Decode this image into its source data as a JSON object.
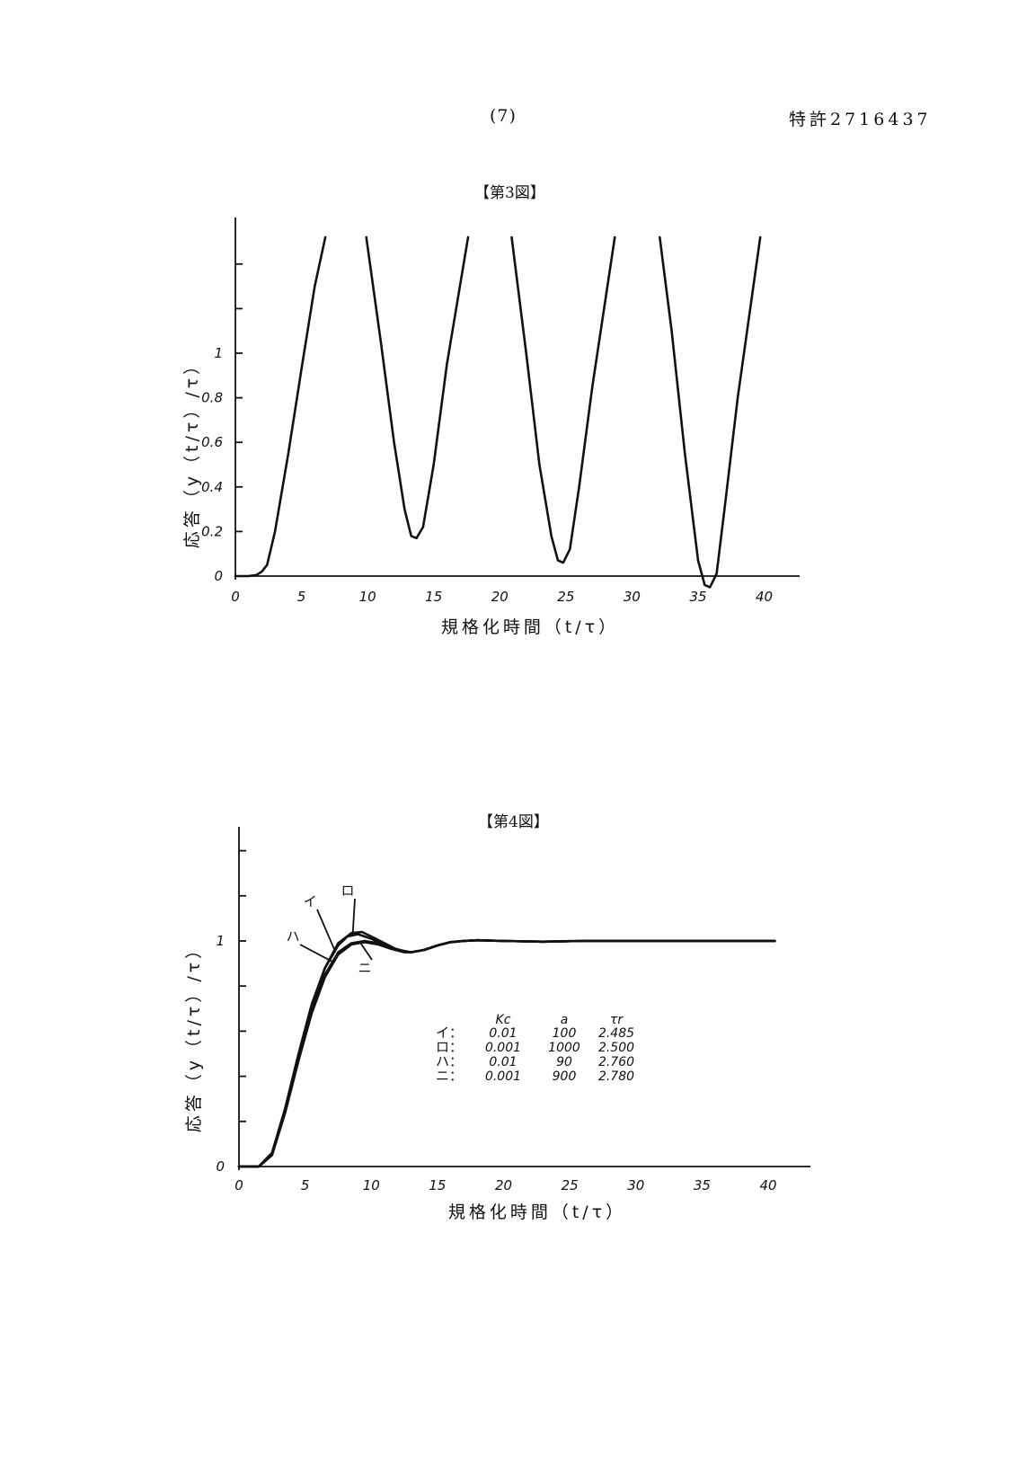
{
  "header": {
    "page_number": "(7)",
    "patent_number": "特許2716437"
  },
  "chart_data": [
    {
      "type": "line",
      "title": "【第3図】",
      "xlabel": "規格化時間（t/τ）",
      "ylabel": "応答（y（t/τ）/τ）",
      "xlim": [
        0,
        42
      ],
      "ylim": [
        -0.05,
        1.6
      ],
      "xticks": [
        0,
        5,
        10,
        15,
        20,
        25,
        30,
        35,
        40
      ],
      "xtick_labels": [
        "0",
        "5",
        "10",
        "15",
        "20",
        "25",
        "30",
        "35",
        "40"
      ],
      "yticks": [
        0,
        0.2,
        0.4,
        0.6,
        0.8,
        1
      ],
      "ytick_labels": [
        "0",
        "0.2",
        "0.4",
        "0.6",
        "0.8",
        "1"
      ],
      "series": [
        {
          "segments": [
            {
              "x": [
                0,
                1,
                1.6,
                2,
                2.4,
                3,
                4,
                5,
                6,
                6.8
              ],
              "y": [
                0,
                0,
                0.005,
                0.02,
                0.05,
                0.2,
                0.55,
                0.93,
                1.3,
                1.52
              ]
            },
            {
              "x": [
                9.9,
                11,
                12,
                12.8,
                13.3,
                13.7,
                14.2,
                15,
                16,
                17.6
              ],
              "y": [
                1.52,
                1.05,
                0.6,
                0.3,
                0.18,
                0.17,
                0.22,
                0.5,
                0.95,
                1.52
              ]
            },
            {
              "x": [
                20.9,
                22,
                23,
                23.9,
                24.4,
                24.8,
                25.3,
                26,
                27,
                28.7
              ],
              "y": [
                1.52,
                1.0,
                0.5,
                0.18,
                0.07,
                0.06,
                0.12,
                0.4,
                0.85,
                1.52
              ]
            },
            {
              "x": [
                32.1,
                33,
                34,
                35,
                35.5,
                35.9,
                36.4,
                37,
                38,
                39.7
              ],
              "y": [
                1.52,
                1.1,
                0.55,
                0.07,
                -0.04,
                -0.05,
                0.01,
                0.3,
                0.8,
                1.52
              ]
            }
          ]
        }
      ]
    },
    {
      "type": "line",
      "title": "【第4図】",
      "xlabel": "規格化時間（t/τ）",
      "ylabel": "応答（y（t/τ）/τ）",
      "xlim": [
        0,
        43
      ],
      "ylim": [
        0,
        1.5
      ],
      "xticks": [
        0,
        5,
        10,
        15,
        20,
        25,
        30,
        35,
        40
      ],
      "xtick_labels": [
        "0",
        "5",
        "10",
        "15",
        "20",
        "25",
        "30",
        "35",
        "40"
      ],
      "ytick_labels": [
        "0",
        "1"
      ],
      "yticks_minor": [
        0.2,
        0.4,
        0.6,
        0.8,
        1.2,
        1.4
      ],
      "table": {
        "headers": [
          "Kc",
          "a",
          "τr"
        ],
        "rows": [
          {
            "label": "イ：",
            "kc": "0.01",
            "a": "100",
            "tr": "2.485"
          },
          {
            "label": "ロ：",
            "kc": "0.001",
            "a": "1000",
            "tr": "2.500"
          },
          {
            "label": "ハ：",
            "kc": "0.01",
            "a": "90",
            "tr": "2.760"
          },
          {
            "label": "ニ：",
            "kc": "0.001",
            "a": "900",
            "tr": "2.780"
          }
        ]
      },
      "series": [
        {
          "name": "イ",
          "x": [
            0,
            1.5,
            2.5,
            3.5,
            4.5,
            5.5,
            6.5,
            7.5,
            8.2,
            9,
            10,
            11,
            12,
            13,
            14,
            15,
            16,
            17,
            18,
            20,
            23,
            26,
            30,
            35,
            40.5
          ],
          "y": [
            0,
            0,
            0.06,
            0.26,
            0.5,
            0.72,
            0.88,
            0.98,
            1.02,
            1.03,
            1.01,
            0.98,
            0.96,
            0.95,
            0.96,
            0.98,
            0.995,
            1.0,
            1.003,
            1.0,
            0.997,
            1.0,
            1.0,
            1.0,
            1.0
          ]
        },
        {
          "name": "ロ",
          "x": [
            0,
            1.5,
            2.5,
            3.5,
            4.5,
            5.5,
            6.5,
            7.5,
            8.5,
            9.3,
            10,
            11,
            12,
            13,
            14,
            15,
            16,
            17,
            18,
            20,
            23,
            26,
            30,
            35,
            40.5
          ],
          "y": [
            0,
            0,
            0.06,
            0.25,
            0.49,
            0.71,
            0.88,
            0.99,
            1.035,
            1.04,
            1.02,
            0.99,
            0.96,
            0.95,
            0.96,
            0.98,
            0.995,
            1.0,
            1.003,
            1.0,
            0.997,
            1.0,
            1.0,
            1.0,
            1.0
          ]
        },
        {
          "name": "ハ",
          "x": [
            0,
            1.5,
            2.5,
            3.5,
            4.5,
            5.5,
            6.5,
            7.5,
            8.5,
            9.5,
            10.5,
            11.5,
            12.5,
            13,
            14,
            15,
            16,
            17,
            18,
            20,
            23,
            26,
            30,
            35,
            40.5
          ],
          "y": [
            0,
            0,
            0.06,
            0.25,
            0.48,
            0.69,
            0.85,
            0.95,
            0.99,
            1.0,
            0.99,
            0.97,
            0.955,
            0.95,
            0.96,
            0.98,
            0.995,
            1.0,
            1.003,
            1.0,
            0.997,
            1.0,
            1.0,
            1.0,
            1.0
          ]
        },
        {
          "name": "ニ",
          "x": [
            0,
            1.5,
            2.5,
            3.5,
            4.5,
            5.5,
            6.5,
            7.5,
            8.5,
            9.5,
            10.5,
            11.5,
            12.5,
            13,
            14,
            15,
            16,
            17,
            18,
            20,
            23,
            26,
            30,
            35,
            40.5
          ],
          "y": [
            0,
            0,
            0.05,
            0.24,
            0.47,
            0.68,
            0.84,
            0.94,
            0.985,
            0.995,
            0.985,
            0.965,
            0.95,
            0.95,
            0.96,
            0.98,
            0.995,
            1.0,
            1.003,
            1.0,
            0.997,
            1.0,
            1.0,
            1.0,
            1.0
          ]
        }
      ]
    }
  ]
}
